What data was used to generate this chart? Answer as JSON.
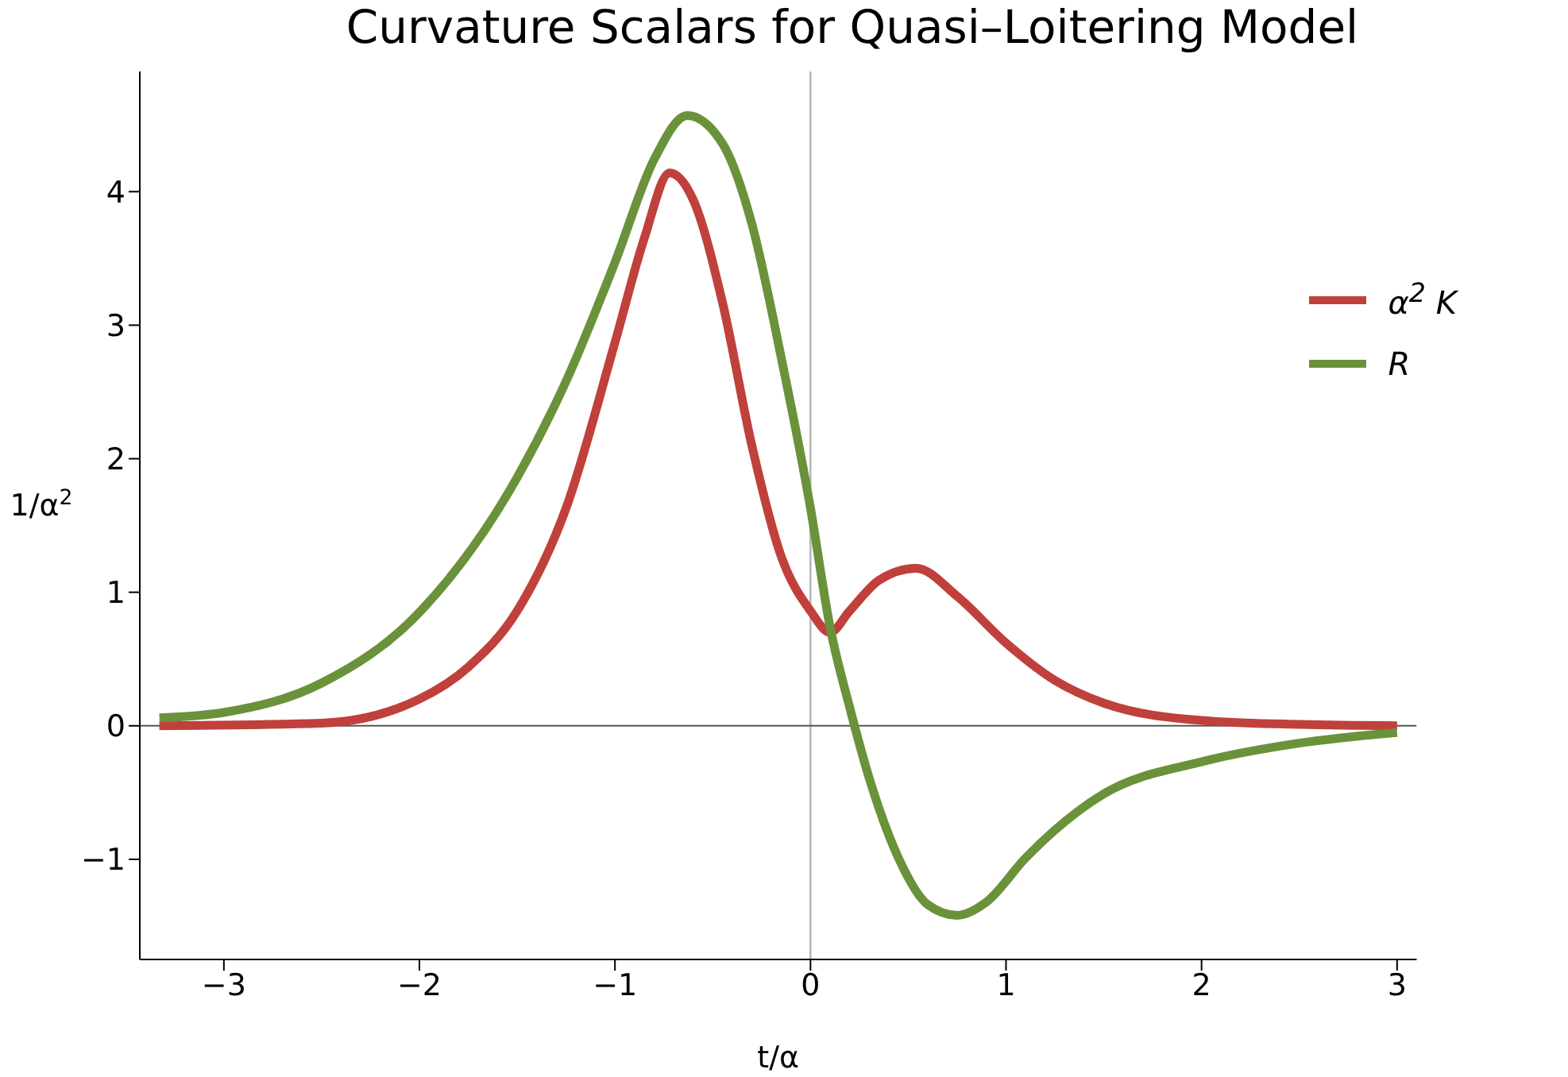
{
  "chart_data": {
    "type": "line",
    "title": "Curvature Scalars for Quasi–Loitering Model",
    "xlabel": "t/α",
    "ylabel": "1/α$^{2}$",
    "xlim": [
      -3.43,
      3.1
    ],
    "ylim": [
      -1.75,
      4.9
    ],
    "xticks": [
      {
        "value": -3,
        "label": "−3"
      },
      {
        "value": -2,
        "label": "−2"
      },
      {
        "value": -1,
        "label": "−1"
      },
      0,
      1,
      2,
      3
    ],
    "yticks": [
      {
        "value": -1,
        "label": "−1"
      },
      0,
      1,
      2,
      3,
      4
    ],
    "legend": "top right",
    "marker": "none",
    "line_style": "solid",
    "ref_lines": [
      {
        "axis": "x",
        "value": 0,
        "color": "#b3b3b3"
      },
      {
        "axis": "y",
        "value": 0,
        "color": "#555555"
      }
    ],
    "series": [
      {
        "name": "α$^{2}$ K",
        "color": "#c0403c",
        "x": [
          -3.33,
          -2.5,
          -2,
          -1.75,
          -1.5,
          -1.25,
          -1,
          -0.85,
          -0.72,
          -0.6,
          -0.45,
          -0.3,
          -0.15,
          0,
          0.1,
          0.2,
          0.35,
          0.54,
          0.75,
          1,
          1.25,
          1.5,
          2,
          2.5,
          3
        ],
        "values": [
          0,
          0.02,
          0.2,
          0.44,
          0.86,
          1.63,
          2.87,
          3.65,
          4.14,
          3.94,
          3.17,
          2.1,
          1.27,
          0.86,
          0.7,
          0.86,
          1.09,
          1.18,
          0.97,
          0.62,
          0.34,
          0.17,
          0.04,
          0.01,
          0
        ]
      },
      {
        "name": "R",
        "color": "#6a923a",
        "x": [
          -3.33,
          -3,
          -2.5,
          -2,
          -1.5,
          -1.25,
          -1,
          -0.8,
          -0.63,
          -0.45,
          -0.3,
          -0.15,
          0,
          0.1,
          0.2,
          0.3,
          0.45,
          0.6,
          0.75,
          0.9,
          1.1,
          1.5,
          2,
          2.5,
          3
        ],
        "values": [
          0.06,
          0.1,
          0.32,
          0.85,
          1.86,
          2.58,
          3.47,
          4.24,
          4.57,
          4.36,
          3.76,
          2.76,
          1.63,
          0.74,
          0.14,
          -0.39,
          -0.99,
          -1.34,
          -1.42,
          -1.32,
          -0.99,
          -0.51,
          -0.27,
          -0.13,
          -0.05
        ]
      }
    ]
  }
}
